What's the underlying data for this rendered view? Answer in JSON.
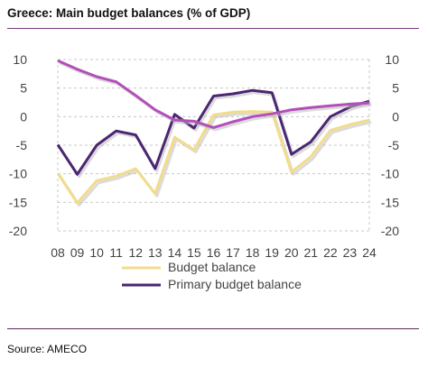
{
  "title": "Greece: Main budget balances (% of GDP)",
  "source": "Source: AMECO",
  "chart_data": {
    "type": "line",
    "categories": [
      "08",
      "09",
      "10",
      "11",
      "12",
      "13",
      "14",
      "15",
      "16",
      "17",
      "18",
      "19",
      "20",
      "21",
      "22",
      "23",
      "24"
    ],
    "ylim": [
      -20,
      10
    ],
    "yticks": [
      10,
      5,
      0,
      -5,
      -10,
      -15,
      -20
    ],
    "grid": true,
    "legend_position": "bottom",
    "series": [
      {
        "name": "Budget balance",
        "color": "#f2dc8c",
        "values": [
          -9.9,
          -15.1,
          -11.2,
          -10.4,
          -9.1,
          -13.5,
          -3.6,
          -5.8,
          0.3,
          0.8,
          0.9,
          0.8,
          -9.7,
          -7.0,
          -2.4,
          -1.4,
          -0.6
        ]
      },
      {
        "name": "Primary budget balance",
        "color": "#4b2672",
        "values": [
          -4.9,
          -10.1,
          -5.0,
          -2.5,
          -3.2,
          -9.1,
          0.4,
          -2.0,
          3.6,
          4.0,
          4.6,
          4.2,
          -6.6,
          -4.4,
          0.0,
          1.7,
          2.7
        ]
      },
      {
        "name": "",
        "color": "#b24fb9",
        "values": [
          9.8,
          8.3,
          7.0,
          6.1,
          3.7,
          1.2,
          -0.6,
          -0.8,
          -1.9,
          -0.9,
          0.0,
          0.5,
          1.2,
          1.6,
          1.9,
          2.2,
          2.4
        ]
      }
    ]
  }
}
